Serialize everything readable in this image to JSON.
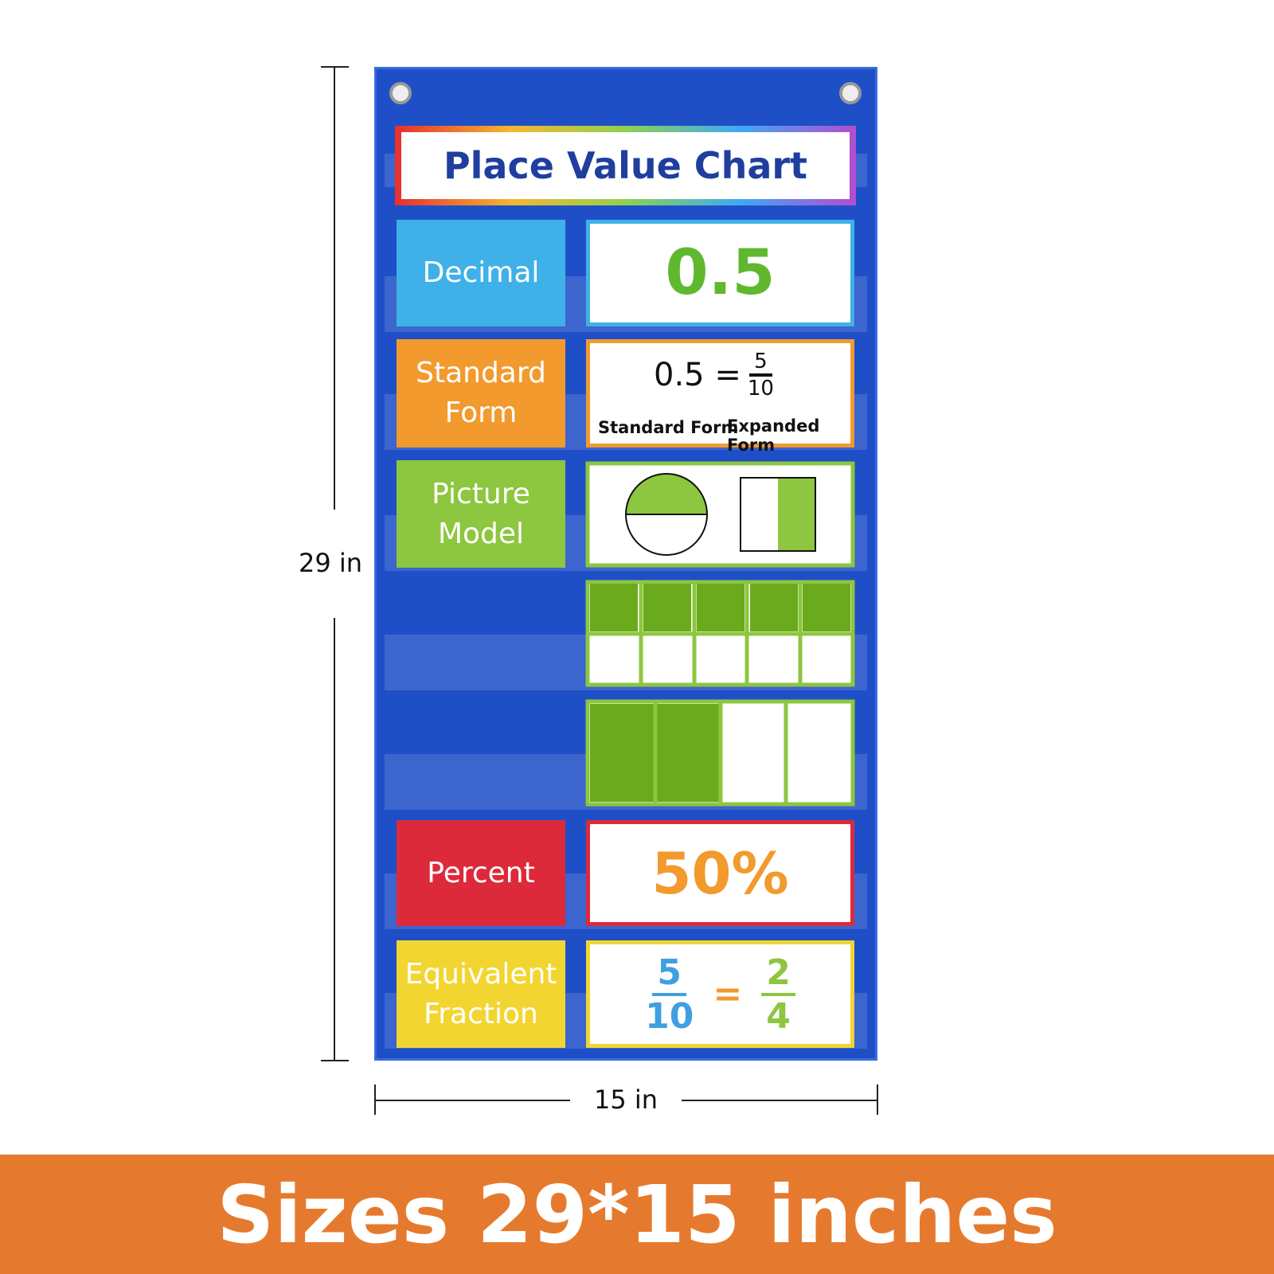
{
  "title": "Place Value Chart",
  "rows": [
    {
      "label": "Decimal",
      "card": {
        "text": "0.5"
      }
    },
    {
      "label": "Standard Form",
      "card": {
        "equation": "0.5 =",
        "numerator": "5",
        "denominator": "10",
        "left_caption": "Standard Form",
        "right_caption": "Expanded Form"
      }
    },
    {
      "label": "Picture Model"
    },
    {
      "label": "Percent",
      "card": {
        "text": "50%"
      }
    },
    {
      "label": "Equivalent Fraction",
      "card": {
        "left": {
          "numerator": "5",
          "denominator": "10"
        },
        "sign": "=",
        "right": {
          "numerator": "2",
          "denominator": "4"
        }
      }
    }
  ],
  "dimensions": {
    "height": "29 in",
    "width": "15 in"
  },
  "banner": "Sizes 29*15 inches"
}
